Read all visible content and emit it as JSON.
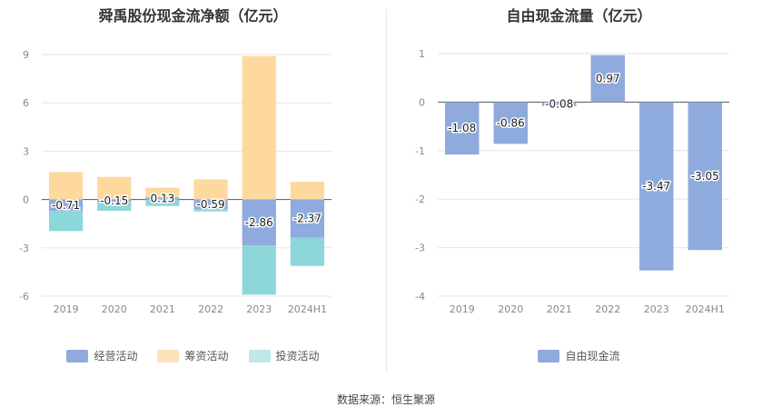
{
  "chart_data": [
    {
      "type": "bar",
      "stacked": true,
      "title": "舜禹股份现金流净额（亿元）",
      "categories": [
        "2019",
        "2020",
        "2021",
        "2022",
        "2023",
        "2024H1"
      ],
      "ylim": [
        -6,
        9
      ],
      "yticks": [
        9,
        6,
        3,
        0,
        -3,
        -6
      ],
      "grid": true,
      "legend_position": "bottom",
      "series": [
        {
          "name": "经营活动",
          "color": "#8faadc",
          "values": [
            -0.71,
            -0.15,
            0.13,
            -0.59,
            -2.86,
            -2.37
          ],
          "labels": [
            "-0.71",
            "-0.15",
            "0.13",
            "-0.59",
            "-2.86",
            "-2.37"
          ]
        },
        {
          "name": "筹资活动",
          "color": "#fdd99e",
          "values": [
            1.7,
            1.4,
            0.6,
            1.25,
            8.9,
            1.1
          ]
        },
        {
          "name": "投资活动",
          "color": "#8dd7db",
          "values": [
            -1.25,
            -0.55,
            -0.4,
            -0.15,
            -3.05,
            -1.75
          ]
        }
      ]
    },
    {
      "type": "bar",
      "title": "自由现金流量（亿元）",
      "categories": [
        "2019",
        "2020",
        "2021",
        "2022",
        "2023",
        "2024H1"
      ],
      "ylim": [
        -4,
        1
      ],
      "yticks": [
        1,
        0,
        -1,
        -2,
        -3,
        -4
      ],
      "grid": true,
      "legend_position": "bottom",
      "series": [
        {
          "name": "自由现金流",
          "color": "#8faadc",
          "values": [
            -1.08,
            -0.86,
            -0.08,
            0.97,
            -3.47,
            -3.05
          ],
          "labels": [
            "-1.08",
            "-0.86",
            "-0.08",
            "0.97",
            "-3.47",
            "-3.05"
          ]
        }
      ]
    }
  ],
  "legend_left": [
    {
      "label": "经营活动",
      "color": "#8faadc"
    },
    {
      "label": "筹资活动",
      "color": "#fde3bc"
    },
    {
      "label": "投资活动",
      "color": "#bfe8ea"
    }
  ],
  "legend_right": [
    {
      "label": "自由现金流",
      "color": "#8faadc"
    }
  ],
  "source_text": "数据来源：恒生聚源"
}
